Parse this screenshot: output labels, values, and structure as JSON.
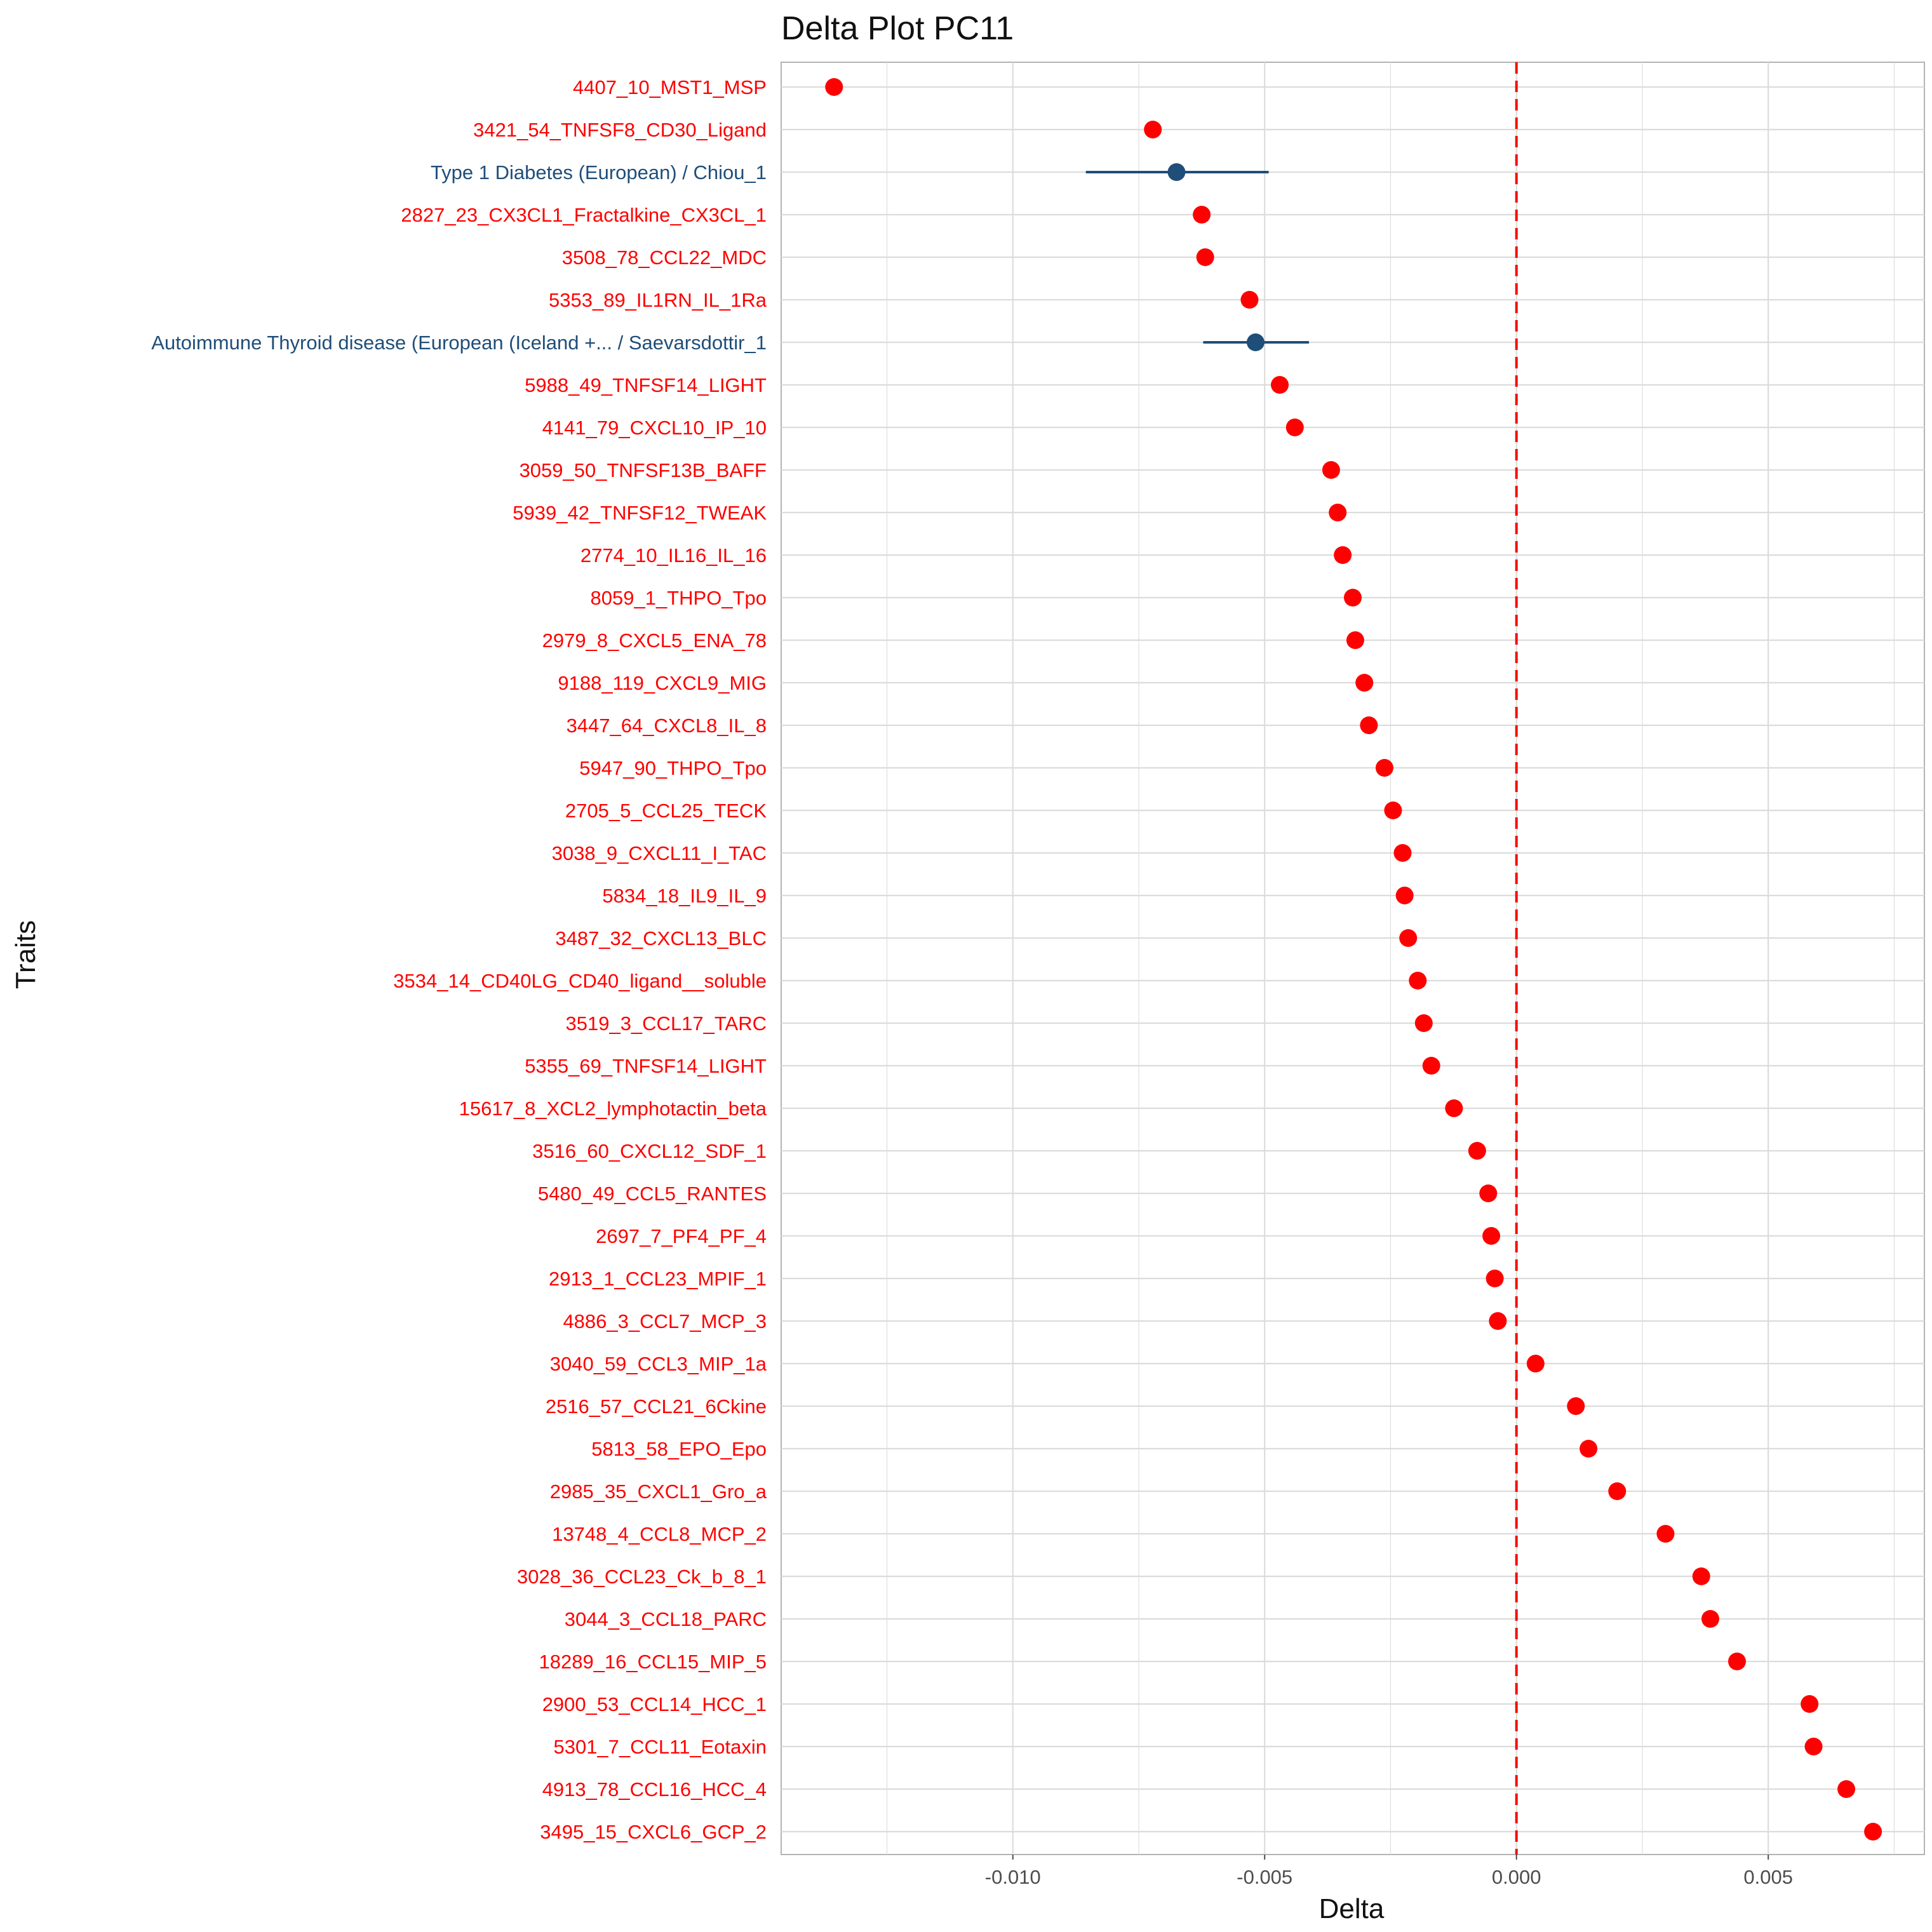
{
  "colors": {
    "protein": "#ff0000",
    "disease": "#1f4e79",
    "zero_line": "#ff0000",
    "grid": "#dcdcdc",
    "panel_border": "#b3b3b3"
  },
  "chart_data": {
    "type": "scatter",
    "title": "Delta Plot PC11",
    "xlabel": "Delta",
    "ylabel": "Traits",
    "xlim": [
      -0.0146,
      0.0081
    ],
    "x_ticks": [
      -0.01,
      -0.005,
      0.0,
      0.005
    ],
    "x_tick_labels": [
      "-0.010",
      "-0.005",
      "0.000",
      "0.005"
    ],
    "reference_line": 0,
    "grid": true,
    "legend": "none",
    "points": [
      {
        "trait": "4407_10_MST1_MSP",
        "delta": -0.01355,
        "group": "protein"
      },
      {
        "trait": "3421_54_TNFSF8_CD30_Ligand",
        "delta": -0.00722,
        "group": "protein"
      },
      {
        "trait": "Type 1 Diabetes (European) / Chiou_1",
        "delta": -0.00675,
        "ci_low": -0.00855,
        "ci_high": -0.00492,
        "group": "disease"
      },
      {
        "trait": "2827_23_CX3CL1_Fractalkine_CX3CL_1",
        "delta": -0.00625,
        "group": "protein"
      },
      {
        "trait": "3508_78_CCL22_MDC",
        "delta": -0.00618,
        "group": "protein"
      },
      {
        "trait": "5353_89_IL1RN_IL_1Ra",
        "delta": -0.0053,
        "group": "protein"
      },
      {
        "trait": "Autoimmune Thyroid disease (European (Iceland +... / Saevarsdottir_1",
        "delta": -0.00518,
        "ci_low": -0.00622,
        "ci_high": -0.00412,
        "group": "disease"
      },
      {
        "trait": "5988_49_TNFSF14_LIGHT",
        "delta": -0.0047,
        "group": "protein"
      },
      {
        "trait": "4141_79_CXCL10_IP_10",
        "delta": -0.0044,
        "group": "protein"
      },
      {
        "trait": "3059_50_TNFSF13B_BAFF",
        "delta": -0.00368,
        "group": "protein"
      },
      {
        "trait": "5939_42_TNFSF12_TWEAK",
        "delta": -0.00355,
        "group": "protein"
      },
      {
        "trait": "2774_10_IL16_IL_16",
        "delta": -0.00345,
        "group": "protein"
      },
      {
        "trait": "8059_1_THPO_Tpo",
        "delta": -0.00325,
        "group": "protein"
      },
      {
        "trait": "2979_8_CXCL5_ENA_78",
        "delta": -0.0032,
        "group": "protein"
      },
      {
        "trait": "9188_119_CXCL9_MIG",
        "delta": -0.00302,
        "group": "protein"
      },
      {
        "trait": "3447_64_CXCL8_IL_8",
        "delta": -0.00293,
        "group": "protein"
      },
      {
        "trait": "5947_90_THPO_Tpo",
        "delta": -0.00262,
        "group": "protein"
      },
      {
        "trait": "2705_5_CCL25_TECK",
        "delta": -0.00245,
        "group": "protein"
      },
      {
        "trait": "3038_9_CXCL11_I_TAC",
        "delta": -0.00226,
        "group": "protein"
      },
      {
        "trait": "5834_18_IL9_IL_9",
        "delta": -0.00222,
        "group": "protein"
      },
      {
        "trait": "3487_32_CXCL13_BLC",
        "delta": -0.00215,
        "group": "protein"
      },
      {
        "trait": "3534_14_CD40LG_CD40_ligand__soluble",
        "delta": -0.00196,
        "group": "protein"
      },
      {
        "trait": "3519_3_CCL17_TARC",
        "delta": -0.00184,
        "group": "protein"
      },
      {
        "trait": "5355_69_TNFSF14_LIGHT",
        "delta": -0.00169,
        "group": "protein"
      },
      {
        "trait": "15617_8_XCL2_lymphotactin_beta",
        "delta": -0.00124,
        "group": "protein"
      },
      {
        "trait": "3516_60_CXCL12_SDF_1",
        "delta": -0.00078,
        "group": "protein"
      },
      {
        "trait": "5480_49_CCL5_RANTES",
        "delta": -0.00056,
        "group": "protein"
      },
      {
        "trait": "2697_7_PF4_PF_4",
        "delta": -0.0005,
        "group": "protein"
      },
      {
        "trait": "2913_1_CCL23_MPIF_1",
        "delta": -0.00043,
        "group": "protein"
      },
      {
        "trait": "4886_3_CCL7_MCP_3",
        "delta": -0.00037,
        "group": "protein"
      },
      {
        "trait": "3040_59_CCL3_MIP_1a",
        "delta": 0.00038,
        "group": "protein"
      },
      {
        "trait": "2516_57_CCL21_6Ckine",
        "delta": 0.00118,
        "group": "protein"
      },
      {
        "trait": "5813_58_EPO_Epo",
        "delta": 0.00143,
        "group": "protein"
      },
      {
        "trait": "2985_35_CXCL1_Gro_a",
        "delta": 0.002,
        "group": "protein"
      },
      {
        "trait": "13748_4_CCL8_MCP_2",
        "delta": 0.00296,
        "group": "protein"
      },
      {
        "trait": "3028_36_CCL23_Ck_b_8_1",
        "delta": 0.00367,
        "group": "protein"
      },
      {
        "trait": "3044_3_CCL18_PARC",
        "delta": 0.00385,
        "group": "protein"
      },
      {
        "trait": "18289_16_CCL15_MIP_5",
        "delta": 0.00438,
        "group": "protein"
      },
      {
        "trait": "2900_53_CCL14_HCC_1",
        "delta": 0.00582,
        "group": "protein"
      },
      {
        "trait": "5301_7_CCL11_Eotaxin",
        "delta": 0.0059,
        "group": "protein"
      },
      {
        "trait": "4913_78_CCL16_HCC_4",
        "delta": 0.00655,
        "group": "protein"
      },
      {
        "trait": "3495_15_CXCL6_GCP_2",
        "delta": 0.00708,
        "group": "protein"
      }
    ]
  }
}
